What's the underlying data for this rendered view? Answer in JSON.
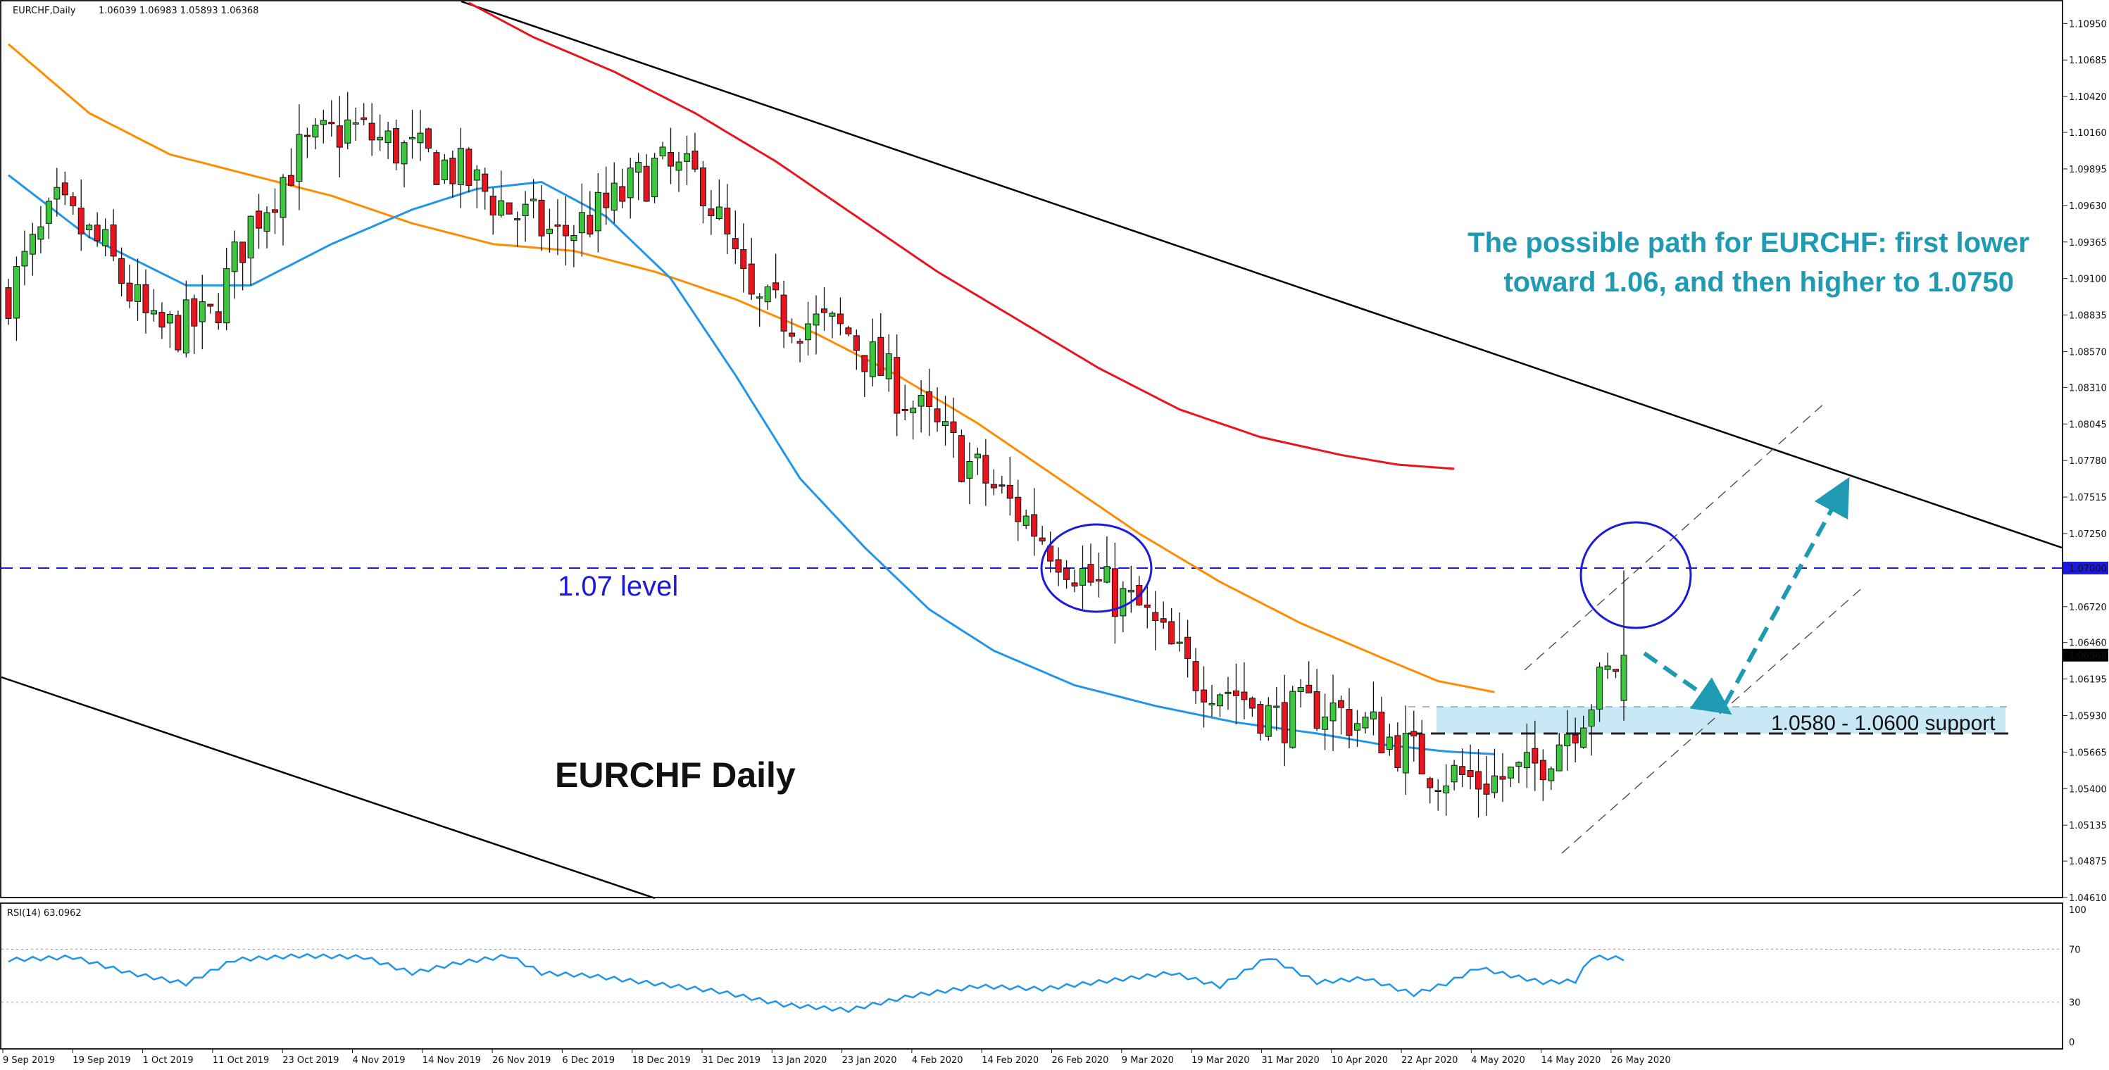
{
  "window": {
    "symbol_label": "EURCHF,Daily",
    "ohlc_text": "1.06039 1.06983 1.05893 1.06368",
    "rsi_label": "RSI(14) 63.0962"
  },
  "chart_data": {
    "type": "candlestick",
    "title": "EURCHF Daily",
    "annotation_text": "The possible path for EURCHF: first lower toward 1.06, and then higher to 1.0750",
    "level_label": "1.07 level",
    "support_label": "1.0580 - 1.0600 support",
    "level_value": 1.07,
    "support_zone": [
      1.058,
      1.06
    ],
    "current_price": 1.06368,
    "ylim": [
      1.0461,
      1.1111
    ],
    "price_ticks": [
      "1.10950",
      "1.10685",
      "1.10420",
      "1.10160",
      "1.09895",
      "1.09630",
      "1.09365",
      "1.09100",
      "1.08835",
      "1.08570",
      "1.08310",
      "1.08045",
      "1.07780",
      "1.07515",
      "1.07250",
      "1.07000",
      "1.06720",
      "1.06460",
      "1.06368",
      "1.06195",
      "1.05930",
      "1.05665",
      "1.05400",
      "1.05135",
      "1.04875",
      "1.04610"
    ],
    "date_ticks": [
      "9 Sep 2019",
      "19 Sep 2019",
      "1 Oct 2019",
      "11 Oct 2019",
      "23 Oct 2019",
      "4 Nov 2019",
      "14 Nov 2019",
      "26 Nov 2019",
      "6 Dec 2019",
      "18 Dec 2019",
      "31 Dec 2019",
      "13 Jan 2020",
      "23 Jan 2020",
      "4 Feb 2020",
      "14 Feb 2020",
      "26 Feb 2020",
      "9 Mar 2020",
      "19 Mar 2020",
      "31 Mar 2020",
      "10 Apr 2020",
      "22 Apr 2020",
      "4 May 2020",
      "14 May 2020",
      "26 May 2020"
    ],
    "rsi_ticks": [
      "100",
      "70",
      "30",
      "0"
    ],
    "rsi_levels": [
      70,
      30
    ],
    "candle_count": 201,
    "close_path": [
      [
        0,
        1.09
      ],
      [
        6,
        1.096
      ],
      [
        12,
        1.093
      ],
      [
        18,
        1.087
      ],
      [
        25,
        1.088
      ],
      [
        30,
        1.095
      ],
      [
        36,
        1.1
      ],
      [
        42,
        1.102
      ],
      [
        50,
        1.1
      ],
      [
        55,
        1.099
      ],
      [
        62,
        1.096
      ],
      [
        68,
        1.094
      ],
      [
        74,
        1.096
      ],
      [
        80,
        1.099
      ],
      [
        86,
        1.098
      ],
      [
        92,
        1.089
      ],
      [
        98,
        1.088
      ],
      [
        104,
        1.087
      ],
      [
        110,
        1.083
      ],
      [
        118,
        1.078
      ],
      [
        126,
        1.0735
      ],
      [
        134,
        1.069
      ],
      [
        140,
        1.067
      ],
      [
        146,
        1.0625
      ],
      [
        152,
        1.061
      ],
      [
        157,
        1.059
      ],
      [
        163,
        1.06
      ],
      [
        170,
        1.058
      ],
      [
        176,
        1.0555
      ],
      [
        182,
        1.0545
      ],
      [
        188,
        1.055
      ],
      [
        194,
        1.059
      ],
      [
        200,
        1.0637
      ]
    ],
    "series": [
      {
        "name": "MA 50",
        "color": "#2196e8",
        "points": [
          [
            0,
            1.0985
          ],
          [
            10,
            1.094
          ],
          [
            22,
            1.0905
          ],
          [
            30,
            1.0905
          ],
          [
            40,
            1.0935
          ],
          [
            50,
            1.096
          ],
          [
            58,
            1.0975
          ],
          [
            66,
            1.098
          ],
          [
            74,
            1.0955
          ],
          [
            82,
            1.091
          ],
          [
            90,
            1.084
          ],
          [
            98,
            1.0765
          ],
          [
            106,
            1.0715
          ],
          [
            114,
            1.067
          ],
          [
            122,
            1.064
          ],
          [
            132,
            1.0615
          ],
          [
            142,
            1.06
          ],
          [
            152,
            1.0588
          ],
          [
            162,
            1.058
          ],
          [
            170,
            1.0572
          ],
          [
            178,
            1.0567
          ],
          [
            184,
            1.0565
          ]
        ]
      },
      {
        "name": "MA 100",
        "color": "#ff8c00",
        "points": [
          [
            0,
            1.108
          ],
          [
            10,
            1.103
          ],
          [
            20,
            1.1
          ],
          [
            30,
            1.0985
          ],
          [
            40,
            1.097
          ],
          [
            50,
            1.095
          ],
          [
            60,
            1.0935
          ],
          [
            70,
            1.093
          ],
          [
            80,
            1.0915
          ],
          [
            90,
            1.0895
          ],
          [
            100,
            1.087
          ],
          [
            110,
            1.084
          ],
          [
            120,
            1.0805
          ],
          [
            130,
            1.0765
          ],
          [
            140,
            1.0725
          ],
          [
            150,
            1.069
          ],
          [
            160,
            1.066
          ],
          [
            170,
            1.0635
          ],
          [
            177,
            1.0618
          ],
          [
            184,
            1.061
          ]
        ]
      },
      {
        "name": "MA 200",
        "color": "#e8141e",
        "points": [
          [
            57,
            1.111
          ],
          [
            65,
            1.1085
          ],
          [
            75,
            1.106
          ],
          [
            85,
            1.103
          ],
          [
            95,
            1.0995
          ],
          [
            105,
            1.0955
          ],
          [
            115,
            1.0915
          ],
          [
            125,
            1.088
          ],
          [
            135,
            1.0845
          ],
          [
            145,
            1.0815
          ],
          [
            155,
            1.0795
          ],
          [
            165,
            1.0782
          ],
          [
            172,
            1.0775
          ],
          [
            179,
            1.0772
          ]
        ]
      }
    ],
    "rsi_path": [
      [
        0,
        62
      ],
      [
        8,
        64
      ],
      [
        15,
        52
      ],
      [
        22,
        44
      ],
      [
        28,
        62
      ],
      [
        36,
        65
      ],
      [
        44,
        64
      ],
      [
        50,
        52
      ],
      [
        56,
        60
      ],
      [
        62,
        65
      ],
      [
        66,
        52
      ],
      [
        72,
        50
      ],
      [
        80,
        44
      ],
      [
        88,
        38
      ],
      [
        96,
        28
      ],
      [
        104,
        24
      ],
      [
        112,
        35
      ],
      [
        120,
        42
      ],
      [
        128,
        40
      ],
      [
        136,
        46
      ],
      [
        144,
        52
      ],
      [
        150,
        42
      ],
      [
        156,
        64
      ],
      [
        162,
        45
      ],
      [
        168,
        48
      ],
      [
        174,
        36
      ],
      [
        178,
        44
      ],
      [
        182,
        56
      ],
      [
        186,
        50
      ],
      [
        190,
        45
      ],
      [
        194,
        46
      ],
      [
        196,
        64
      ],
      [
        200,
        63
      ]
    ]
  },
  "colors": {
    "bull": "#3cc83c",
    "bear": "#e8141e",
    "level": "#0000dd",
    "annotation": "#1e9bb3",
    "support_fill": "#c9e8f5",
    "trendline": "#000000"
  }
}
